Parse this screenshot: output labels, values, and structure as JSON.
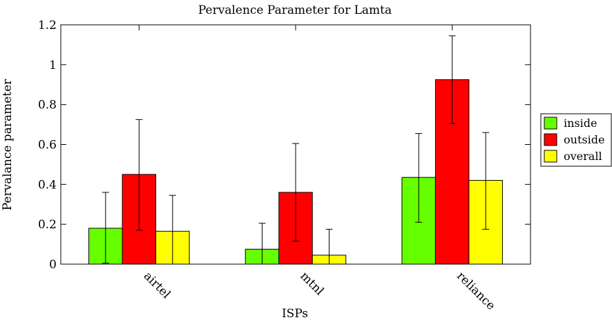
{
  "chart_data": {
    "type": "bar",
    "title": "Pervalence Parameter for Lamta",
    "xlabel": "ISPs",
    "ylabel": "Pervalance parameter",
    "categories": [
      "airtel",
      "mtnl",
      "reliance"
    ],
    "ylim": [
      0,
      1.2
    ],
    "yticks": [
      0,
      0.2,
      0.4,
      0.6,
      0.8,
      1,
      1.2
    ],
    "ytick_labels": [
      "0",
      "0.2",
      "0.4",
      "0.6",
      "0.8",
      "1",
      "1.2"
    ],
    "grid": false,
    "legend_position": "right",
    "error_bars": true,
    "series": [
      {
        "name": "inside",
        "color": "#66ff00",
        "values": [
          0.18,
          0.075,
          0.435
        ],
        "err_low": [
          0.005,
          0.0,
          0.21
        ],
        "err_high": [
          0.36,
          0.205,
          0.655
        ]
      },
      {
        "name": "outside",
        "color": "#ff0000",
        "values": [
          0.45,
          0.36,
          0.925
        ],
        "err_low": [
          0.17,
          0.115,
          0.705
        ],
        "err_high": [
          0.725,
          0.605,
          1.145
        ]
      },
      {
        "name": "overall",
        "color": "#ffff00",
        "values": [
          0.165,
          0.045,
          0.42
        ],
        "err_low": [
          0.0,
          0.0,
          0.175
        ],
        "err_high": [
          0.345,
          0.175,
          0.66
        ]
      }
    ]
  }
}
